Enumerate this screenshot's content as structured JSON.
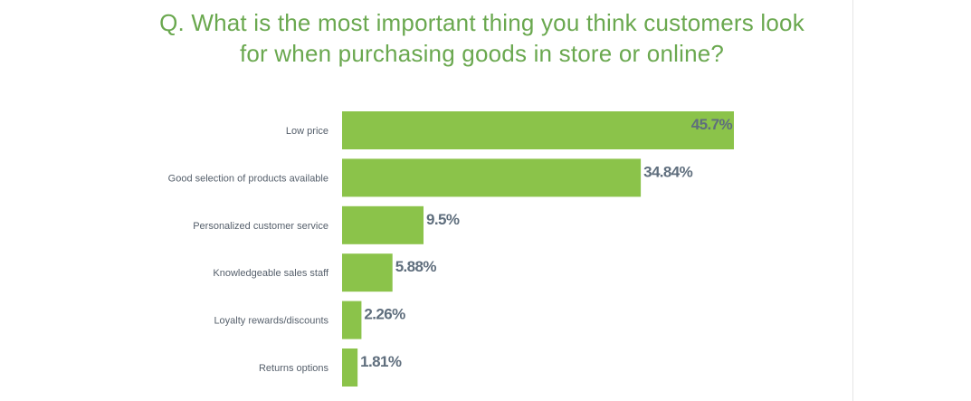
{
  "chart_data": {
    "type": "bar",
    "orientation": "horizontal",
    "title_lines": [
      "Q. What is the most important thing you think customers look",
      "for when purchasing goods in store or online?"
    ],
    "categories": [
      "Low price",
      "Good selection of products available",
      "Personalized customer service",
      "Knowledgeable sales staff",
      "Loyalty rewards/discounts",
      "Returns options"
    ],
    "values": [
      45.7,
      34.84,
      9.5,
      5.88,
      2.26,
      1.81
    ],
    "value_labels": [
      "45.7%",
      "34.84%",
      "9.5%",
      "5.88%",
      "2.26%",
      "1.81%"
    ],
    "xlabel": "",
    "ylabel": "",
    "xlim": [
      0,
      45.7
    ],
    "grid": false,
    "legend": "none",
    "colors": {
      "bar": "#8bc34a",
      "title": "#6aa84f",
      "value_label": "#5f6e7d",
      "category_label": "#555f6b"
    }
  }
}
